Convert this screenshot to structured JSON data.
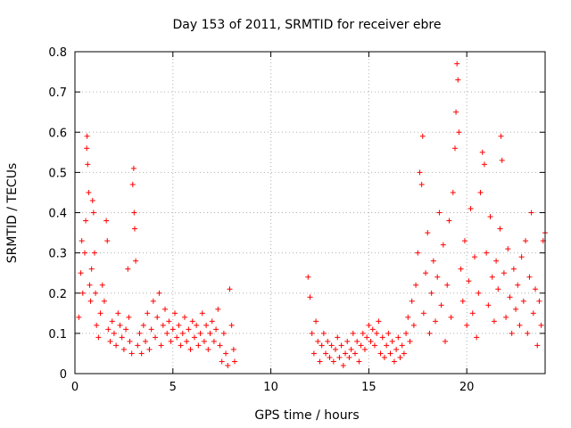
{
  "chart_data": {
    "type": "scatter",
    "title": "Day 153 of 2011, SRMTID for receiver ebre",
    "xlabel": "GPS time / hours",
    "ylabel": "SRMTID / TECUs",
    "xlim": [
      0,
      24
    ],
    "ylim": [
      0,
      0.8
    ],
    "xticks": [
      0,
      5,
      10,
      15,
      20
    ],
    "yticks": [
      0,
      0.1,
      0.2,
      0.3,
      0.4,
      0.5,
      0.6,
      0.7,
      0.8
    ],
    "xtick_labels": [
      "0",
      "5",
      "10",
      "15",
      "20"
    ],
    "ytick_labels": [
      "0",
      "0.1",
      "0.2",
      "0.3",
      "0.4",
      "0.5",
      "0.6",
      "0.7",
      "0.8"
    ],
    "grid": true,
    "marker": "+",
    "color": "#ff0000",
    "series": [
      {
        "name": "SRMTID",
        "points": [
          [
            0.2,
            0.14
          ],
          [
            0.3,
            0.25
          ],
          [
            0.35,
            0.33
          ],
          [
            0.4,
            0.2
          ],
          [
            0.5,
            0.3
          ],
          [
            0.55,
            0.38
          ],
          [
            0.6,
            0.56
          ],
          [
            0.62,
            0.59
          ],
          [
            0.65,
            0.52
          ],
          [
            0.7,
            0.45
          ],
          [
            0.75,
            0.22
          ],
          [
            0.8,
            0.18
          ],
          [
            0.85,
            0.26
          ],
          [
            0.9,
            0.43
          ],
          [
            0.95,
            0.4
          ],
          [
            1.0,
            0.3
          ],
          [
            1.05,
            0.2
          ],
          [
            1.1,
            0.12
          ],
          [
            1.2,
            0.09
          ],
          [
            1.3,
            0.15
          ],
          [
            1.4,
            0.22
          ],
          [
            1.5,
            0.18
          ],
          [
            1.6,
            0.38
          ],
          [
            1.65,
            0.33
          ],
          [
            1.7,
            0.11
          ],
          [
            1.8,
            0.08
          ],
          [
            1.9,
            0.13
          ],
          [
            2.0,
            0.1
          ],
          [
            2.1,
            0.07
          ],
          [
            2.2,
            0.15
          ],
          [
            2.3,
            0.12
          ],
          [
            2.4,
            0.09
          ],
          [
            2.5,
            0.06
          ],
          [
            2.6,
            0.11
          ],
          [
            2.7,
            0.26
          ],
          [
            2.75,
            0.14
          ],
          [
            2.8,
            0.08
          ],
          [
            2.9,
            0.05
          ],
          [
            2.95,
            0.47
          ],
          [
            3.0,
            0.51
          ],
          [
            3.02,
            0.4
          ],
          [
            3.05,
            0.36
          ],
          [
            3.1,
            0.28
          ],
          [
            3.2,
            0.07
          ],
          [
            3.3,
            0.1
          ],
          [
            3.4,
            0.05
          ],
          [
            3.5,
            0.12
          ],
          [
            3.6,
            0.08
          ],
          [
            3.7,
            0.15
          ],
          [
            3.8,
            0.06
          ],
          [
            3.9,
            0.11
          ],
          [
            4.0,
            0.18
          ],
          [
            4.1,
            0.09
          ],
          [
            4.2,
            0.14
          ],
          [
            4.3,
            0.2
          ],
          [
            4.4,
            0.07
          ],
          [
            4.5,
            0.12
          ],
          [
            4.6,
            0.16
          ],
          [
            4.7,
            0.1
          ],
          [
            4.8,
            0.13
          ],
          [
            4.9,
            0.08
          ],
          [
            5.0,
            0.11
          ],
          [
            5.1,
            0.15
          ],
          [
            5.2,
            0.09
          ],
          [
            5.3,
            0.12
          ],
          [
            5.4,
            0.07
          ],
          [
            5.5,
            0.1
          ],
          [
            5.6,
            0.14
          ],
          [
            5.7,
            0.08
          ],
          [
            5.8,
            0.11
          ],
          [
            5.9,
            0.06
          ],
          [
            6.0,
            0.13
          ],
          [
            6.1,
            0.09
          ],
          [
            6.2,
            0.12
          ],
          [
            6.3,
            0.07
          ],
          [
            6.4,
            0.1
          ],
          [
            6.5,
            0.15
          ],
          [
            6.6,
            0.08
          ],
          [
            6.7,
            0.12
          ],
          [
            6.8,
            0.06
          ],
          [
            6.9,
            0.1
          ],
          [
            7.0,
            0.13
          ],
          [
            7.1,
            0.08
          ],
          [
            7.2,
            0.11
          ],
          [
            7.3,
            0.16
          ],
          [
            7.4,
            0.07
          ],
          [
            7.5,
            0.03
          ],
          [
            7.6,
            0.1
          ],
          [
            7.7,
            0.05
          ],
          [
            7.8,
            0.02
          ],
          [
            7.9,
            0.21
          ],
          [
            8.0,
            0.12
          ],
          [
            8.1,
            0.06
          ],
          [
            8.15,
            0.03
          ],
          [
            11.9,
            0.24
          ],
          [
            12.0,
            0.19
          ],
          [
            12.1,
            0.1
          ],
          [
            12.2,
            0.05
          ],
          [
            12.3,
            0.13
          ],
          [
            12.4,
            0.08
          ],
          [
            12.5,
            0.03
          ],
          [
            12.6,
            0.07
          ],
          [
            12.7,
            0.1
          ],
          [
            12.8,
            0.05
          ],
          [
            12.9,
            0.08
          ],
          [
            13.0,
            0.04
          ],
          [
            13.1,
            0.07
          ],
          [
            13.2,
            0.03
          ],
          [
            13.3,
            0.06
          ],
          [
            13.4,
            0.09
          ],
          [
            13.5,
            0.04
          ],
          [
            13.6,
            0.07
          ],
          [
            13.7,
            0.02
          ],
          [
            13.8,
            0.05
          ],
          [
            13.9,
            0.08
          ],
          [
            14.0,
            0.04
          ],
          [
            14.1,
            0.06
          ],
          [
            14.2,
            0.1
          ],
          [
            14.3,
            0.05
          ],
          [
            14.4,
            0.08
          ],
          [
            14.5,
            0.03
          ],
          [
            14.6,
            0.07
          ],
          [
            14.7,
            0.1
          ],
          [
            14.8,
            0.06
          ],
          [
            14.9,
            0.09
          ],
          [
            15.0,
            0.12
          ],
          [
            15.1,
            0.08
          ],
          [
            15.2,
            0.11
          ],
          [
            15.3,
            0.07
          ],
          [
            15.4,
            0.1
          ],
          [
            15.5,
            0.13
          ],
          [
            15.6,
            0.05
          ],
          [
            15.7,
            0.09
          ],
          [
            15.8,
            0.04
          ],
          [
            15.9,
            0.07
          ],
          [
            16.0,
            0.1
          ],
          [
            16.1,
            0.05
          ],
          [
            16.2,
            0.08
          ],
          [
            16.3,
            0.03
          ],
          [
            16.4,
            0.06
          ],
          [
            16.5,
            0.09
          ],
          [
            16.6,
            0.04
          ],
          [
            16.7,
            0.07
          ],
          [
            16.8,
            0.05
          ],
          [
            16.9,
            0.1
          ],
          [
            17.0,
            0.14
          ],
          [
            17.1,
            0.08
          ],
          [
            17.2,
            0.18
          ],
          [
            17.3,
            0.12
          ],
          [
            17.4,
            0.22
          ],
          [
            17.5,
            0.3
          ],
          [
            17.6,
            0.5
          ],
          [
            17.7,
            0.47
          ],
          [
            17.75,
            0.59
          ],
          [
            17.8,
            0.15
          ],
          [
            17.9,
            0.25
          ],
          [
            18.0,
            0.35
          ],
          [
            18.1,
            0.1
          ],
          [
            18.2,
            0.2
          ],
          [
            18.3,
            0.28
          ],
          [
            18.4,
            0.13
          ],
          [
            18.5,
            0.24
          ],
          [
            18.6,
            0.4
          ],
          [
            18.7,
            0.17
          ],
          [
            18.8,
            0.32
          ],
          [
            18.9,
            0.08
          ],
          [
            19.0,
            0.22
          ],
          [
            19.1,
            0.38
          ],
          [
            19.2,
            0.14
          ],
          [
            19.3,
            0.45
          ],
          [
            19.4,
            0.56
          ],
          [
            19.45,
            0.65
          ],
          [
            19.5,
            0.77
          ],
          [
            19.55,
            0.73
          ],
          [
            19.6,
            0.6
          ],
          [
            19.7,
            0.26
          ],
          [
            19.8,
            0.18
          ],
          [
            19.9,
            0.33
          ],
          [
            20.0,
            0.12
          ],
          [
            20.1,
            0.23
          ],
          [
            20.2,
            0.41
          ],
          [
            20.3,
            0.15
          ],
          [
            20.4,
            0.29
          ],
          [
            20.5,
            0.09
          ],
          [
            20.6,
            0.2
          ],
          [
            20.7,
            0.45
          ],
          [
            20.8,
            0.55
          ],
          [
            20.9,
            0.52
          ],
          [
            21.0,
            0.3
          ],
          [
            21.1,
            0.17
          ],
          [
            21.2,
            0.39
          ],
          [
            21.3,
            0.24
          ],
          [
            21.4,
            0.13
          ],
          [
            21.5,
            0.28
          ],
          [
            21.6,
            0.21
          ],
          [
            21.7,
            0.36
          ],
          [
            21.75,
            0.59
          ],
          [
            21.8,
            0.53
          ],
          [
            21.9,
            0.25
          ],
          [
            22.0,
            0.14
          ],
          [
            22.1,
            0.31
          ],
          [
            22.2,
            0.19
          ],
          [
            22.3,
            0.1
          ],
          [
            22.4,
            0.26
          ],
          [
            22.5,
            0.16
          ],
          [
            22.6,
            0.22
          ],
          [
            22.7,
            0.12
          ],
          [
            22.8,
            0.29
          ],
          [
            22.9,
            0.18
          ],
          [
            23.0,
            0.33
          ],
          [
            23.1,
            0.1
          ],
          [
            23.2,
            0.24
          ],
          [
            23.3,
            0.4
          ],
          [
            23.4,
            0.15
          ],
          [
            23.5,
            0.21
          ],
          [
            23.6,
            0.07
          ],
          [
            23.7,
            0.18
          ],
          [
            23.8,
            0.12
          ],
          [
            23.9,
            0.33
          ],
          [
            24.0,
            0.35
          ]
        ]
      }
    ]
  }
}
